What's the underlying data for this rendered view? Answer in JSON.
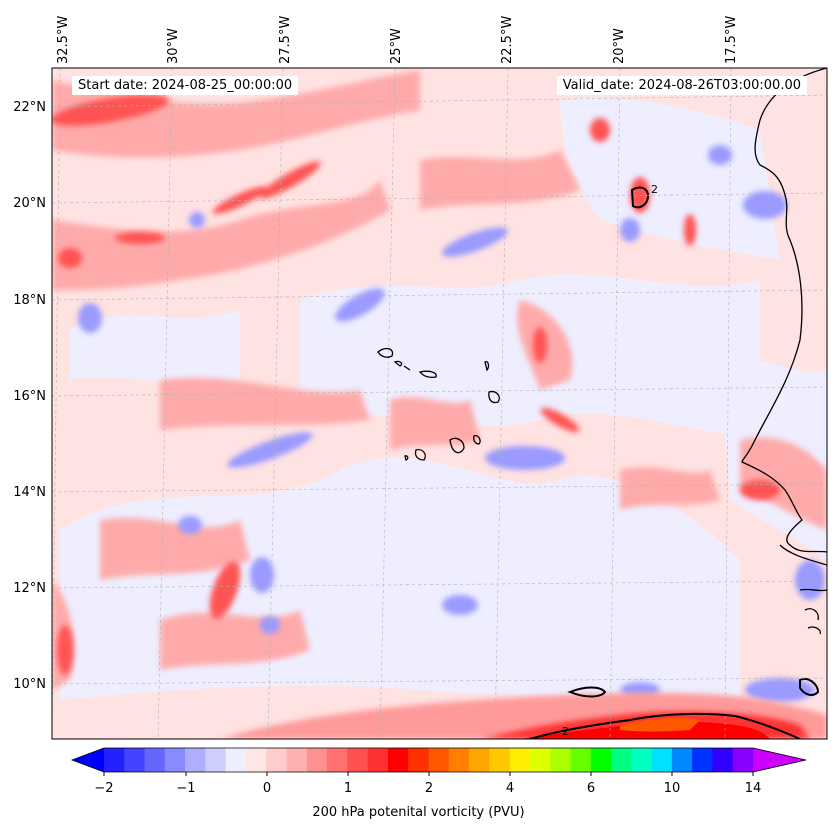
{
  "map": {
    "start_date": "Start date: 2024-08-25_00:00:00",
    "valid_date": "Valid_date: 2024-08-26T03:00:00.00",
    "lon_labels": [
      "32.5°W",
      "30°W",
      "27.5°W",
      "25°W",
      "22.5°W",
      "20°W",
      "17.5°W"
    ],
    "lat_labels": [
      "22°N",
      "20°N",
      "18°N",
      "16°N",
      "14°N",
      "12°N",
      "10°N"
    ],
    "contour_label": "2",
    "grid": "dashed gray"
  },
  "colorbar": {
    "label": "200 hPa potenital vorticity (PVU)",
    "ticks": [
      "−2",
      "−1",
      "0",
      "1",
      "2",
      "4",
      "6",
      "10",
      "14"
    ],
    "colors": [
      "#0000ff",
      "#2222ff",
      "#4444ff",
      "#6666ff",
      "#8a8aff",
      "#aeaeff",
      "#cfcfff",
      "#eeeeff",
      "#ffe6e6",
      "#ffcccc",
      "#ffb0b0",
      "#ff9090",
      "#ff7070",
      "#ff5050",
      "#ff3030",
      "#ff0000",
      "#ff3000",
      "#ff5800",
      "#ff8000",
      "#ffa500",
      "#ffc800",
      "#ffee00",
      "#ddff00",
      "#aaff00",
      "#66ff00",
      "#00ff00",
      "#00ff80",
      "#00ffc0",
      "#00e0ff",
      "#0088ff",
      "#0033ff",
      "#3300ff",
      "#8800ff",
      "#cc00ff"
    ]
  }
}
